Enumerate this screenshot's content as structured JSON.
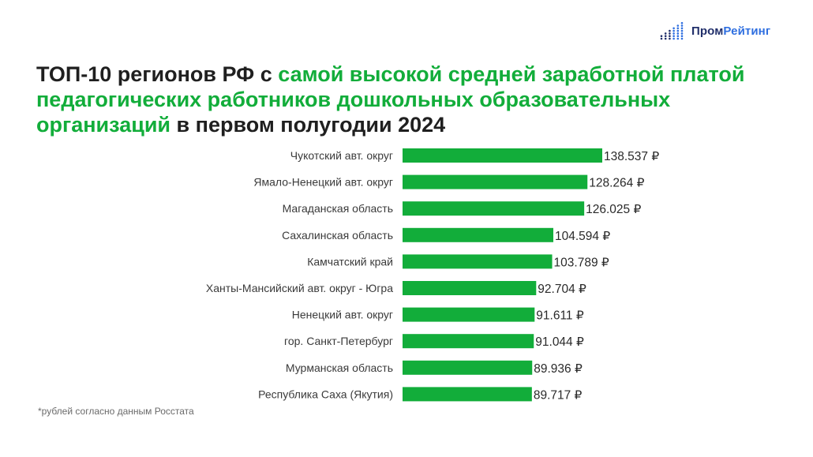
{
  "brand": {
    "part1": "Пром",
    "part2": "Рейтинг",
    "mark": "dot-bars-logo-icon",
    "colors": {
      "dark": "#22306b",
      "accent": "#2f6fe0"
    }
  },
  "title": {
    "part1": "ТОП-10 регионов РФ с ",
    "highlight": "самой высокой средней заработной платой педагогических работников дошкольных образовательных организаций",
    "part2": " в первом полугодии 2024"
  },
  "footnote": "*рублей согласно данным Росстата",
  "chart_data": {
    "type": "bar",
    "orientation": "horizontal",
    "categories": [
      "Чукотский авт. округ",
      "Ямало-Ненецкий авт. округ",
      "Магаданская область",
      "Сахалинская область",
      "Камчатский край",
      "Ханты-Мансийский авт. округ - Югра",
      "Ненецкий авт. округ",
      "гор. Санкт-Петербург",
      "Мурманская область",
      "Республика Саха (Якутия)"
    ],
    "values": [
      138537,
      128264,
      126025,
      104594,
      103789,
      92704,
      91611,
      91044,
      89936,
      89717
    ],
    "value_labels": [
      "138.537 ₽",
      "128.264 ₽",
      "126.025 ₽",
      "104.594 ₽",
      "103.789 ₽",
      "92.704 ₽",
      "91.611 ₽",
      "91.044 ₽",
      "89.936 ₽",
      "89.717 ₽"
    ],
    "bar_color": "#12ad3a",
    "grid": false,
    "legend": "none"
  }
}
